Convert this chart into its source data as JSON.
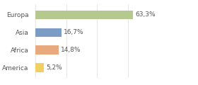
{
  "categories": [
    "Europa",
    "Asia",
    "Africa",
    "America"
  ],
  "values": [
    63.3,
    16.7,
    14.8,
    5.2
  ],
  "labels": [
    "63,3%",
    "16,7%",
    "14,8%",
    "5,2%"
  ],
  "bar_colors": [
    "#b5c98e",
    "#7a9cc5",
    "#e8a97e",
    "#f0d060"
  ],
  "background_color": "#ffffff",
  "xlim": [
    0,
    80
  ],
  "bar_height": 0.5,
  "label_fontsize": 6.5,
  "tick_fontsize": 6.5,
  "grid_ticks": [
    0,
    20,
    40,
    60,
    80
  ],
  "label_offsets": [
    1.5,
    1.5,
    1.5,
    1.5
  ]
}
